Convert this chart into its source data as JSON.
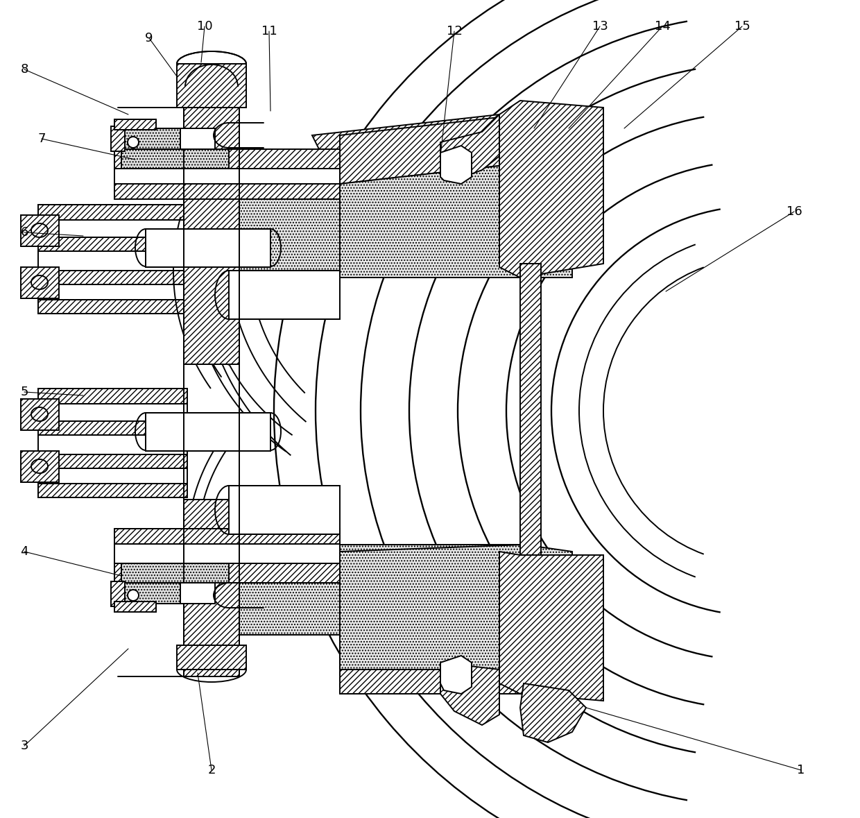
{
  "bg": "#ffffff",
  "lc": "#000000",
  "lw_main": 1.4,
  "lw_thin": 0.8,
  "lw_thick": 2.0,
  "figwidth": 12.4,
  "figheight": 11.79,
  "dpi": 100,
  "labels": [
    [
      "1",
      1155,
      1110
    ],
    [
      "2",
      305,
      1110
    ],
    [
      "3",
      35,
      1075
    ],
    [
      "4",
      35,
      795
    ],
    [
      "5",
      35,
      565
    ],
    [
      "6",
      35,
      335
    ],
    [
      "7",
      60,
      200
    ],
    [
      "8",
      35,
      100
    ],
    [
      "9",
      215,
      55
    ],
    [
      "10",
      295,
      38
    ],
    [
      "11",
      388,
      45
    ],
    [
      "12",
      655,
      45
    ],
    [
      "13",
      865,
      38
    ],
    [
      "14",
      955,
      38
    ],
    [
      "15",
      1070,
      38
    ],
    [
      "16",
      1145,
      305
    ]
  ],
  "leader_lines": [
    [
      "1",
      1155,
      1110,
      845,
      1020
    ],
    [
      "2",
      305,
      1110,
      285,
      970
    ],
    [
      "3",
      35,
      1075,
      185,
      935
    ],
    [
      "4",
      35,
      795,
      175,
      830
    ],
    [
      "5",
      35,
      565,
      120,
      570
    ],
    [
      "6",
      35,
      335,
      120,
      340
    ],
    [
      "7",
      60,
      200,
      195,
      230
    ],
    [
      "8",
      35,
      100,
      185,
      165
    ],
    [
      "9",
      215,
      55,
      255,
      110
    ],
    [
      "10",
      295,
      38,
      290,
      90
    ],
    [
      "11",
      388,
      45,
      390,
      160
    ],
    [
      "12",
      655,
      45,
      635,
      225
    ],
    [
      "13",
      865,
      38,
      770,
      185
    ],
    [
      "14",
      955,
      38,
      820,
      185
    ],
    [
      "15",
      1070,
      38,
      900,
      185
    ],
    [
      "16",
      1145,
      305,
      960,
      420
    ]
  ]
}
